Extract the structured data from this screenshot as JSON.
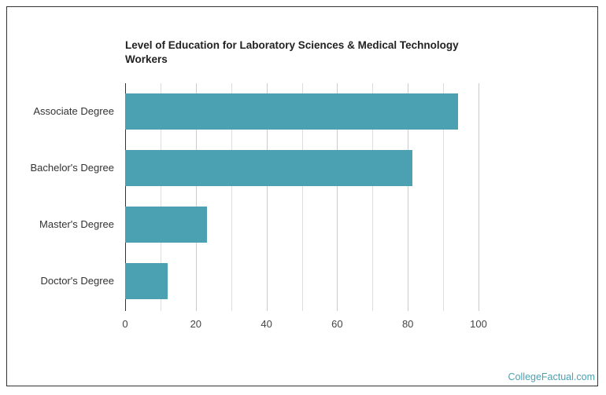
{
  "chart_data": {
    "type": "bar",
    "orientation": "horizontal",
    "title": "Level of Education for Laboratory Sciences & Medical Technology Workers",
    "categories": [
      "Associate Degree",
      "Bachelor's Degree",
      "Master's Degree",
      "Doctor's Degree"
    ],
    "values": [
      94.2,
      81.3,
      23.2,
      12.0
    ],
    "xlabel": "",
    "ylabel": "",
    "xlim": [
      0,
      100
    ],
    "xticks": [
      "0",
      "20",
      "40",
      "60",
      "80",
      "100"
    ],
    "grid": true,
    "legend": null,
    "bar_color": "#4ba1b2"
  },
  "branding": "CollegeFactual.com"
}
